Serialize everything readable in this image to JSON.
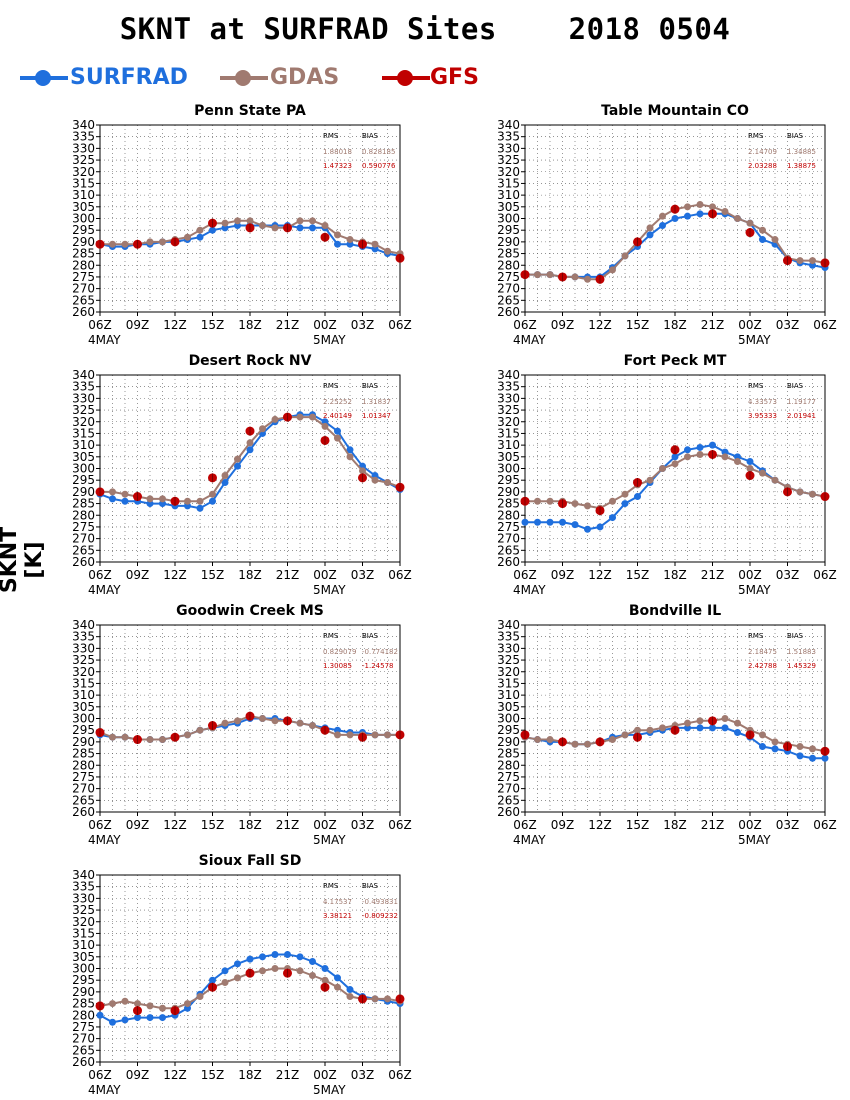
{
  "title": "SKNT at SURFRAD Sites    2018 0504",
  "ylabel": "SKNT [K]",
  "legend": [
    {
      "name": "SURFRAD",
      "color": "#1f6fdd"
    },
    {
      "name": "GDAS",
      "color": "#a07a70"
    },
    {
      "name": "GFS",
      "color": "#c00000"
    }
  ],
  "colors": {
    "surfrad": "#1f6fdd",
    "gdas": "#a07a70",
    "gfs": "#c00000"
  },
  "axis": {
    "xticks": [
      "06Z",
      "09Z",
      "12Z",
      "15Z",
      "18Z",
      "21Z",
      "00Z",
      "03Z",
      "06Z"
    ],
    "date_labels": [
      "4MAY",
      "5MAY"
    ],
    "ylim": [
      260,
      340
    ],
    "ystep": 5
  },
  "stats_headers": [
    "RMS",
    "BIAS"
  ],
  "chart_data": [
    {
      "type": "line",
      "title": "Penn State PA",
      "x_hours": [
        0,
        1,
        2,
        3,
        4,
        5,
        6,
        7,
        8,
        9,
        10,
        11,
        12,
        13,
        14,
        15,
        16,
        17,
        18,
        19,
        20,
        21,
        22,
        23,
        24
      ],
      "series": [
        {
          "name": "SURFRAD",
          "values": [
            289,
            288,
            288,
            289,
            289,
            290,
            290,
            291,
            292,
            295,
            296,
            297,
            297,
            297,
            297,
            297,
            296,
            296,
            296,
            289,
            289,
            288,
            287,
            285,
            284
          ]
        },
        {
          "name": "GDAS",
          "values": [
            289,
            289,
            289,
            289,
            290,
            290,
            291,
            292,
            295,
            298,
            298,
            299,
            299,
            297,
            296,
            296,
            299,
            299,
            297,
            293,
            291,
            290,
            289,
            286,
            285
          ]
        },
        {
          "name": "GFS",
          "points": [
            [
              0,
              289
            ],
            [
              3,
              289
            ],
            [
              6,
              290
            ],
            [
              9,
              298
            ],
            [
              12,
              296
            ],
            [
              15,
              296
            ],
            [
              18,
              292
            ],
            [
              21,
              289
            ],
            [
              24,
              283
            ]
          ]
        }
      ],
      "stats": {
        "gdas": [
          "1.88018",
          "0.828185"
        ],
        "gfs": [
          "1.47323",
          "0.590776"
        ]
      }
    },
    {
      "type": "line",
      "title": "Table Mountain CO",
      "x_hours": [
        0,
        1,
        2,
        3,
        4,
        5,
        6,
        7,
        8,
        9,
        10,
        11,
        12,
        13,
        14,
        15,
        16,
        17,
        18,
        19,
        20,
        21,
        22,
        23,
        24
      ],
      "series": [
        {
          "name": "SURFRAD",
          "values": [
            276,
            276,
            276,
            275,
            275,
            275,
            275,
            279,
            284,
            288,
            293,
            297,
            300,
            301,
            302,
            302,
            302,
            300,
            298,
            291,
            289,
            283,
            281,
            280,
            279
          ]
        },
        {
          "name": "GDAS",
          "values": [
            276,
            276,
            276,
            275,
            275,
            274,
            274,
            278,
            284,
            290,
            296,
            301,
            304,
            305,
            306,
            305,
            303,
            300,
            298,
            295,
            291,
            283,
            282,
            282,
            281
          ]
        },
        {
          "name": "GFS",
          "points": [
            [
              0,
              276
            ],
            [
              3,
              275
            ],
            [
              6,
              274
            ],
            [
              9,
              290
            ],
            [
              12,
              304
            ],
            [
              15,
              302
            ],
            [
              18,
              294
            ],
            [
              21,
              282
            ],
            [
              24,
              281
            ]
          ]
        }
      ],
      "stats": {
        "gdas": [
          "2.14709",
          "1.34885"
        ],
        "gfs": [
          "2.03288",
          "1.38875"
        ]
      }
    },
    {
      "type": "line",
      "title": "Desert Rock NV",
      "x_hours": [
        0,
        1,
        2,
        3,
        4,
        5,
        6,
        7,
        8,
        9,
        10,
        11,
        12,
        13,
        14,
        15,
        16,
        17,
        18,
        19,
        20,
        21,
        22,
        23,
        24
      ],
      "series": [
        {
          "name": "SURFRAD",
          "values": [
            289,
            287,
            286,
            286,
            285,
            285,
            284,
            284,
            283,
            286,
            294,
            301,
            308,
            315,
            320,
            322,
            323,
            323,
            320,
            316,
            308,
            301,
            297,
            294,
            291
          ]
        },
        {
          "name": "GDAS",
          "values": [
            290,
            290,
            289,
            288,
            287,
            287,
            286,
            286,
            286,
            289,
            297,
            304,
            311,
            317,
            321,
            322,
            322,
            322,
            318,
            313,
            305,
            299,
            295,
            294,
            292
          ]
        },
        {
          "name": "GFS",
          "points": [
            [
              0,
              290
            ],
            [
              3,
              288
            ],
            [
              6,
              286
            ],
            [
              9,
              296
            ],
            [
              12,
              316
            ],
            [
              15,
              322
            ],
            [
              18,
              312
            ],
            [
              21,
              296
            ],
            [
              24,
              292
            ]
          ]
        }
      ],
      "stats": {
        "gdas": [
          "2.25252",
          "1.31837"
        ],
        "gfs": [
          "2.40149",
          "1.01347"
        ]
      }
    },
    {
      "type": "line",
      "title": "Fort Peck MT",
      "x_hours": [
        0,
        1,
        2,
        3,
        4,
        5,
        6,
        7,
        8,
        9,
        10,
        11,
        12,
        13,
        14,
        15,
        16,
        17,
        18,
        19,
        20,
        21,
        22,
        23,
        24
      ],
      "series": [
        {
          "name": "SURFRAD",
          "values": [
            277,
            277,
            277,
            277,
            276,
            274,
            275,
            279,
            285,
            288,
            294,
            300,
            305,
            308,
            309,
            310,
            307,
            305,
            303,
            299,
            295,
            292,
            290,
            289,
            288
          ]
        },
        {
          "name": "GDAS",
          "values": [
            286,
            286,
            286,
            286,
            285,
            284,
            283,
            286,
            289,
            293,
            295,
            300,
            302,
            305,
            306,
            306,
            305,
            303,
            300,
            298,
            295,
            292,
            290,
            289,
            288
          ]
        },
        {
          "name": "GFS",
          "points": [
            [
              0,
              286
            ],
            [
              3,
              285
            ],
            [
              6,
              282
            ],
            [
              9,
              294
            ],
            [
              12,
              308
            ],
            [
              15,
              306
            ],
            [
              18,
              297
            ],
            [
              21,
              290
            ],
            [
              24,
              288
            ]
          ]
        }
      ],
      "stats": {
        "gdas": [
          "4.33573",
          "1.19177"
        ],
        "gfs": [
          "3.95333",
          "2.01941"
        ]
      }
    },
    {
      "type": "line",
      "title": "Goodwin Creek MS",
      "x_hours": [
        0,
        1,
        2,
        3,
        4,
        5,
        6,
        7,
        8,
        9,
        10,
        11,
        12,
        13,
        14,
        15,
        16,
        17,
        18,
        19,
        20,
        21,
        22,
        23,
        24
      ],
      "series": [
        {
          "name": "SURFRAD",
          "values": [
            293,
            292,
            292,
            291,
            291,
            291,
            292,
            293,
            295,
            296,
            297,
            298,
            300,
            300,
            300,
            299,
            298,
            297,
            296,
            295,
            294,
            294,
            293,
            293,
            293
          ]
        },
        {
          "name": "GDAS",
          "values": [
            294,
            292,
            292,
            291,
            291,
            291,
            292,
            293,
            295,
            296,
            298,
            299,
            301,
            300,
            299,
            299,
            298,
            297,
            295,
            293,
            293,
            293,
            293,
            293,
            293
          ]
        },
        {
          "name": "GFS",
          "points": [
            [
              0,
              294
            ],
            [
              3,
              291
            ],
            [
              6,
              292
            ],
            [
              9,
              297
            ],
            [
              12,
              301
            ],
            [
              15,
              299
            ],
            [
              18,
              295
            ],
            [
              21,
              292
            ],
            [
              24,
              293
            ]
          ]
        }
      ],
      "stats": {
        "gdas": [
          "0.829079",
          "-0.774182"
        ],
        "gfs": [
          "1.30085",
          "-1.24578"
        ]
      }
    },
    {
      "type": "line",
      "title": "Bondville IL",
      "x_hours": [
        0,
        1,
        2,
        3,
        4,
        5,
        6,
        7,
        8,
        9,
        10,
        11,
        12,
        13,
        14,
        15,
        16,
        17,
        18,
        19,
        20,
        21,
        22,
        23,
        24
      ],
      "series": [
        {
          "name": "SURFRAD",
          "values": [
            292,
            291,
            290,
            290,
            289,
            289,
            290,
            292,
            293,
            293,
            294,
            295,
            296,
            296,
            296,
            296,
            296,
            294,
            292,
            288,
            287,
            286,
            284,
            283,
            283
          ]
        },
        {
          "name": "GDAS",
          "values": [
            292,
            291,
            291,
            290,
            289,
            289,
            290,
            291,
            293,
            295,
            295,
            296,
            297,
            298,
            299,
            299,
            300,
            298,
            295,
            293,
            290,
            289,
            288,
            287,
            286
          ]
        },
        {
          "name": "GFS",
          "points": [
            [
              0,
              293
            ],
            [
              3,
              290
            ],
            [
              6,
              290
            ],
            [
              9,
              292
            ],
            [
              12,
              295
            ],
            [
              15,
              299
            ],
            [
              18,
              293
            ],
            [
              21,
              288
            ],
            [
              24,
              286
            ]
          ]
        }
      ],
      "stats": {
        "gdas": [
          "2.18475",
          "1.51883"
        ],
        "gfs": [
          "2.42788",
          "1.45329"
        ]
      }
    },
    {
      "type": "line",
      "title": "Sioux Fall SD",
      "x_hours": [
        0,
        1,
        2,
        3,
        4,
        5,
        6,
        7,
        8,
        9,
        10,
        11,
        12,
        13,
        14,
        15,
        16,
        17,
        18,
        19,
        20,
        21,
        22,
        23,
        24
      ],
      "series": [
        {
          "name": "SURFRAD",
          "values": [
            280,
            277,
            278,
            279,
            279,
            279,
            280,
            283,
            289,
            295,
            299,
            302,
            304,
            305,
            306,
            306,
            305,
            303,
            300,
            296,
            291,
            288,
            287,
            286,
            285
          ]
        },
        {
          "name": "GDAS",
          "values": [
            284,
            285,
            286,
            285,
            284,
            283,
            283,
            285,
            288,
            292,
            294,
            296,
            298,
            299,
            300,
            300,
            299,
            297,
            295,
            292,
            288,
            287,
            287,
            287,
            286
          ]
        },
        {
          "name": "GFS",
          "points": [
            [
              0,
              284
            ],
            [
              3,
              282
            ],
            [
              6,
              282
            ],
            [
              9,
              292
            ],
            [
              12,
              298
            ],
            [
              15,
              298
            ],
            [
              18,
              292
            ],
            [
              21,
              287
            ],
            [
              24,
              287
            ]
          ]
        }
      ],
      "stats": {
        "gdas": [
          "4.17537",
          "-0.493831"
        ],
        "gfs": [
          "3.38121",
          "-0.809232"
        ]
      }
    }
  ]
}
